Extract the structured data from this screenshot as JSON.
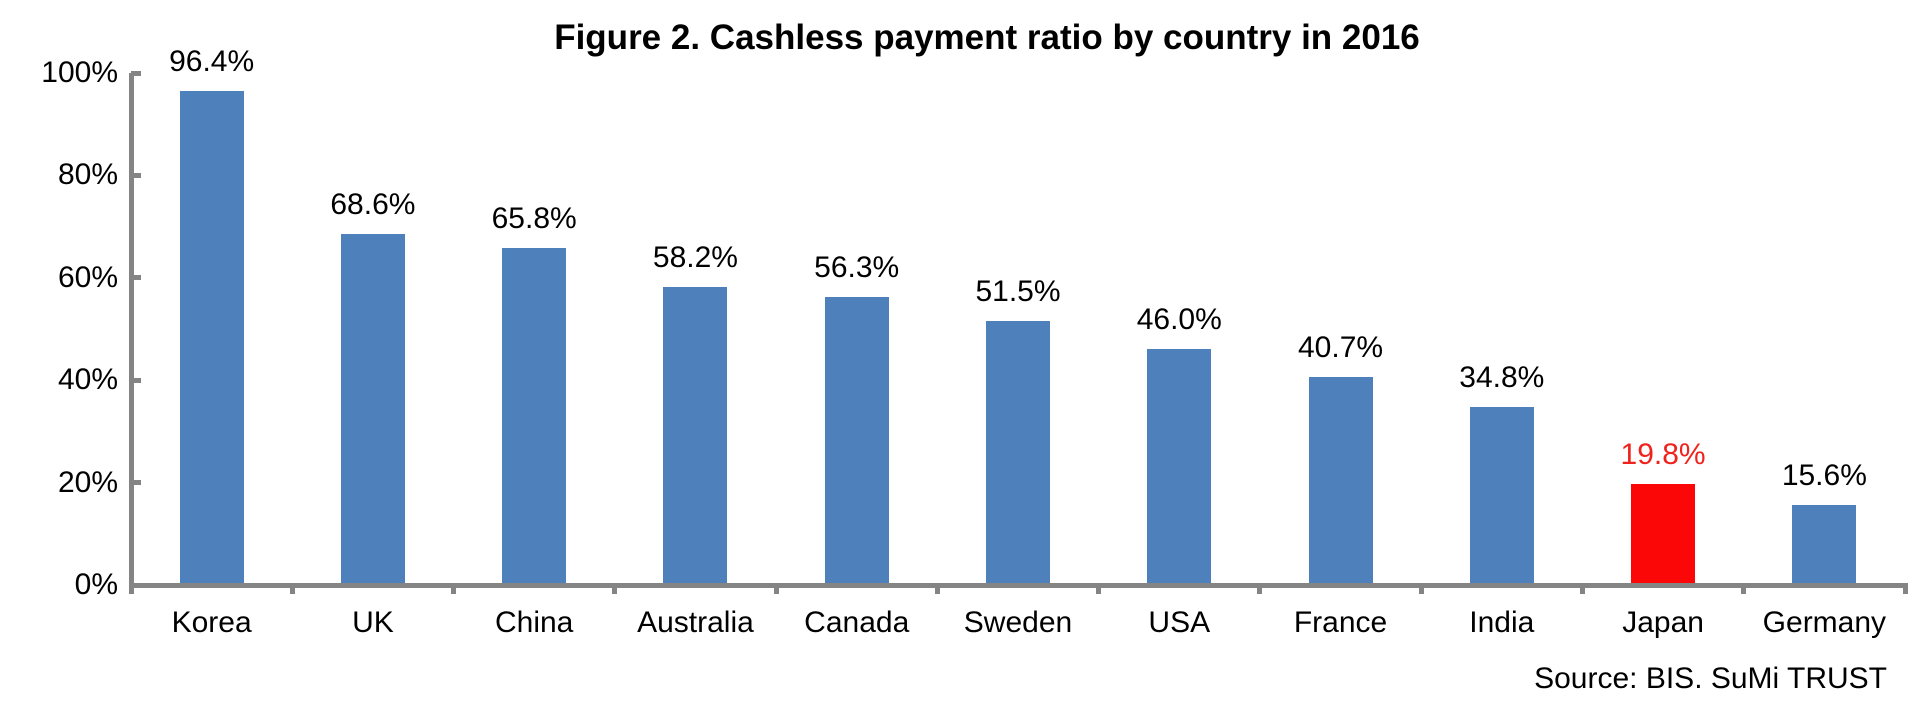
{
  "chart_data": {
    "type": "bar",
    "title": "Figure 2. Cashless payment ratio by country in 2016",
    "source": "Source: BIS. SuMi TRUST",
    "categories": [
      "Korea",
      "UK",
      "China",
      "Australia",
      "Canada",
      "Sweden",
      "USA",
      "France",
      "India",
      "Japan",
      "Germany"
    ],
    "values": [
      96.4,
      68.6,
      65.8,
      58.2,
      56.3,
      51.5,
      46.0,
      40.7,
      34.8,
      19.8,
      15.6
    ],
    "value_labels": [
      "96.4%",
      "68.6%",
      "65.8%",
      "58.2%",
      "56.3%",
      "51.5%",
      "46.0%",
      "40.7%",
      "34.8%",
      "19.8%",
      "15.6%"
    ],
    "xlabel": "",
    "ylabel": "",
    "ylim": [
      0,
      100
    ],
    "yticks": [
      {
        "value": 100,
        "label": "100%"
      },
      {
        "value": 80,
        "label": "80%"
      },
      {
        "value": 60,
        "label": "60%"
      },
      {
        "value": 40,
        "label": "40%"
      },
      {
        "value": 20,
        "label": "20%"
      },
      {
        "value": 0,
        "label": "0%"
      }
    ],
    "grid": false,
    "legend": "none",
    "highlight_category": "Japan",
    "colors": {
      "bar_default": "#4E80BC",
      "bar_highlight": "#FB0707",
      "value_label_default": "#000000",
      "value_label_highlight": "#F0221C",
      "axis": "#848484",
      "title_text": "#000000"
    }
  }
}
